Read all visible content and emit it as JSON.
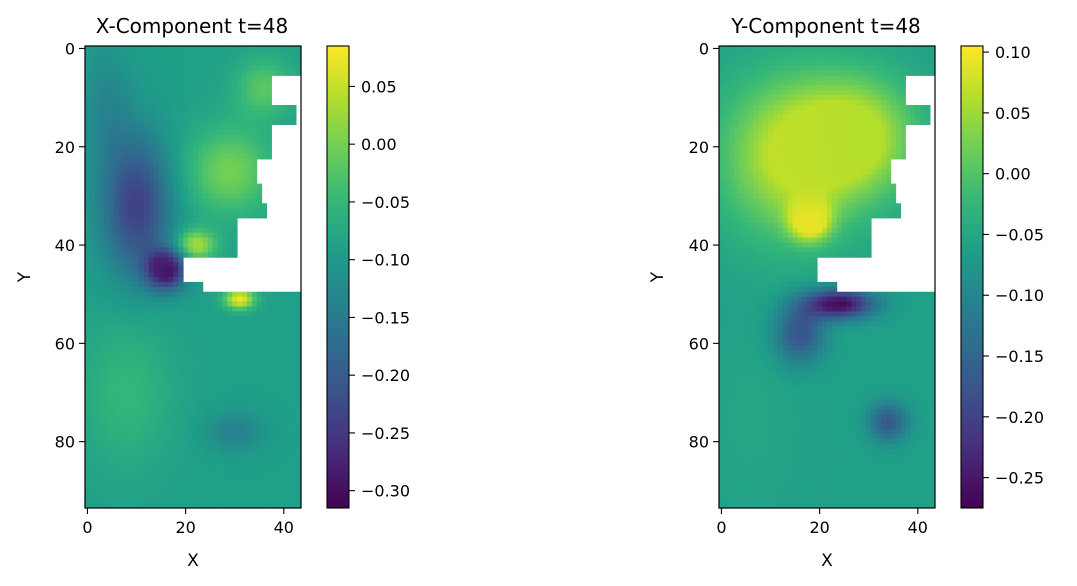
{
  "chart_data": [
    {
      "type": "heatmap",
      "title": "X-Component t=48",
      "xlabel": "X",
      "ylabel": "Y",
      "colormap": "viridis",
      "xlim": [
        -0.5,
        43.5
      ],
      "ylim": [
        93.5,
        -0.5
      ],
      "x_ticks": [
        0,
        20,
        40
      ],
      "y_ticks": [
        0,
        20,
        40,
        60,
        80
      ],
      "colorbar": {
        "min": -0.315,
        "max": 0.085,
        "ticks": [
          0.05,
          0.0,
          -0.05,
          -0.1,
          -0.15,
          -0.2,
          -0.25,
          -0.3
        ]
      },
      "background": -0.09,
      "masked_regions": [
        {
          "x0": 38,
          "x1": 43,
          "y0": 6,
          "y1": 11
        },
        {
          "x0": 43,
          "x1": 43,
          "y0": 11,
          "y1": 16
        },
        {
          "x0": 38,
          "x1": 43,
          "y0": 16,
          "y1": 23
        },
        {
          "x0": 35,
          "x1": 43,
          "y0": 23,
          "y1": 27
        },
        {
          "x0": 36,
          "x1": 43,
          "y0": 27,
          "y1": 31
        },
        {
          "x0": 37,
          "x1": 43,
          "y0": 31,
          "y1": 35
        },
        {
          "x0": 31,
          "x1": 43,
          "y0": 35,
          "y1": 43
        },
        {
          "x0": 20,
          "x1": 43,
          "y0": 43,
          "y1": 47
        },
        {
          "x0": 24,
          "x1": 43,
          "y0": 47,
          "y1": 49
        }
      ],
      "features": [
        {
          "cx": 16,
          "cy": 45,
          "rx": 4,
          "ry": 4,
          "value": -0.31
        },
        {
          "cx": 10,
          "cy": 32,
          "rx": 7,
          "ry": 14,
          "value": -0.24
        },
        {
          "cx": 4,
          "cy": 12,
          "rx": 5,
          "ry": 12,
          "value": -0.13
        },
        {
          "cx": 22,
          "cy": 40,
          "rx": 4,
          "ry": 3,
          "value": 0.04
        },
        {
          "cx": 31,
          "cy": 51,
          "rx": 3,
          "ry": 2,
          "value": 0.08
        },
        {
          "cx": 29,
          "cy": 25,
          "rx": 9,
          "ry": 9,
          "value": 0.0
        },
        {
          "cx": 36,
          "cy": 8,
          "rx": 6,
          "ry": 6,
          "value": -0.02
        },
        {
          "cx": 8,
          "cy": 70,
          "rx": 9,
          "ry": 15,
          "value": -0.05
        },
        {
          "cx": 30,
          "cy": 78,
          "rx": 6,
          "ry": 4,
          "value": -0.14
        }
      ]
    },
    {
      "type": "heatmap",
      "title": "Y-Component t=48",
      "xlabel": "X",
      "ylabel": "Y",
      "colormap": "viridis",
      "xlim": [
        -0.5,
        43.5
      ],
      "ylim": [
        93.5,
        -0.5
      ],
      "x_ticks": [
        0,
        20,
        40
      ],
      "y_ticks": [
        0,
        20,
        40,
        60,
        80
      ],
      "colorbar": {
        "min": -0.275,
        "max": 0.105,
        "ticks": [
          0.1,
          0.05,
          0.0,
          -0.05,
          -0.1,
          -0.15,
          -0.2,
          -0.25
        ]
      },
      "background": -0.06,
      "masked_regions": [
        {
          "x0": 38,
          "x1": 43,
          "y0": 6,
          "y1": 11
        },
        {
          "x0": 43,
          "x1": 43,
          "y0": 11,
          "y1": 16
        },
        {
          "x0": 38,
          "x1": 43,
          "y0": 16,
          "y1": 23
        },
        {
          "x0": 35,
          "x1": 43,
          "y0": 23,
          "y1": 27
        },
        {
          "x0": 36,
          "x1": 43,
          "y0": 27,
          "y1": 31
        },
        {
          "x0": 37,
          "x1": 43,
          "y0": 31,
          "y1": 35
        },
        {
          "x0": 31,
          "x1": 43,
          "y0": 35,
          "y1": 43
        },
        {
          "x0": 20,
          "x1": 43,
          "y0": 43,
          "y1": 47
        },
        {
          "x0": 24,
          "x1": 43,
          "y0": 47,
          "y1": 49
        }
      ],
      "features": [
        {
          "cx": 18,
          "cy": 35,
          "rx": 4,
          "ry": 4,
          "value": 0.105
        },
        {
          "cx": 14,
          "cy": 22,
          "rx": 14,
          "ry": 16,
          "value": 0.07
        },
        {
          "cx": 28,
          "cy": 18,
          "rx": 12,
          "ry": 12,
          "value": 0.06
        },
        {
          "cx": 24,
          "cy": 52,
          "rx": 7,
          "ry": 3,
          "value": -0.27
        },
        {
          "cx": 16,
          "cy": 58,
          "rx": 5,
          "ry": 6,
          "value": -0.18
        },
        {
          "cx": 34,
          "cy": 76,
          "rx": 4,
          "ry": 4,
          "value": -0.17
        },
        {
          "cx": 6,
          "cy": 75,
          "rx": 8,
          "ry": 16,
          "value": -0.05
        }
      ]
    }
  ]
}
